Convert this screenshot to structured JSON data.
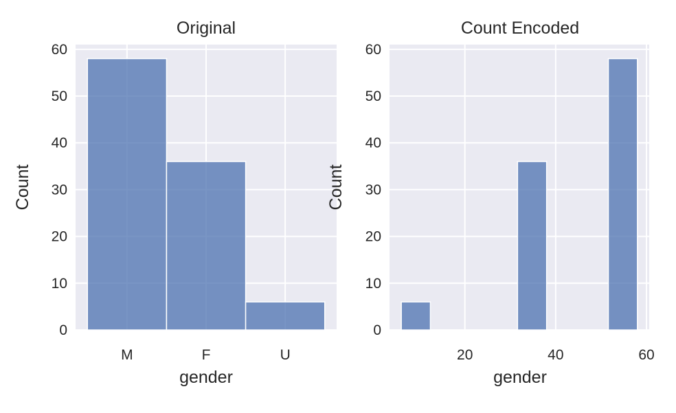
{
  "chart_data": [
    {
      "type": "bar",
      "title": "Original",
      "xlabel": "gender",
      "ylabel": "Count",
      "categories": [
        "M",
        "F",
        "U"
      ],
      "values": [
        58,
        36,
        6
      ],
      "ylim": [
        0,
        61
      ],
      "yticks": [
        0,
        10,
        20,
        30,
        40,
        50,
        60
      ],
      "grid": true,
      "color": "#4c72b0"
    },
    {
      "type": "bar",
      "title": "Count Encoded",
      "xlabel": "gender",
      "ylabel": "Count",
      "bins": [
        {
          "x0": 6,
          "x1": 12.4,
          "count": 6
        },
        {
          "x0": 31.6,
          "x1": 38,
          "count": 36
        },
        {
          "x0": 51.6,
          "x1": 58,
          "count": 58
        }
      ],
      "xlim": [
        3.4,
        60.6
      ],
      "xticks": [
        20,
        40,
        60
      ],
      "ylim": [
        0,
        61
      ],
      "yticks": [
        0,
        10,
        20,
        30,
        40,
        50,
        60
      ],
      "grid": true,
      "color": "#4c72b0"
    }
  ]
}
